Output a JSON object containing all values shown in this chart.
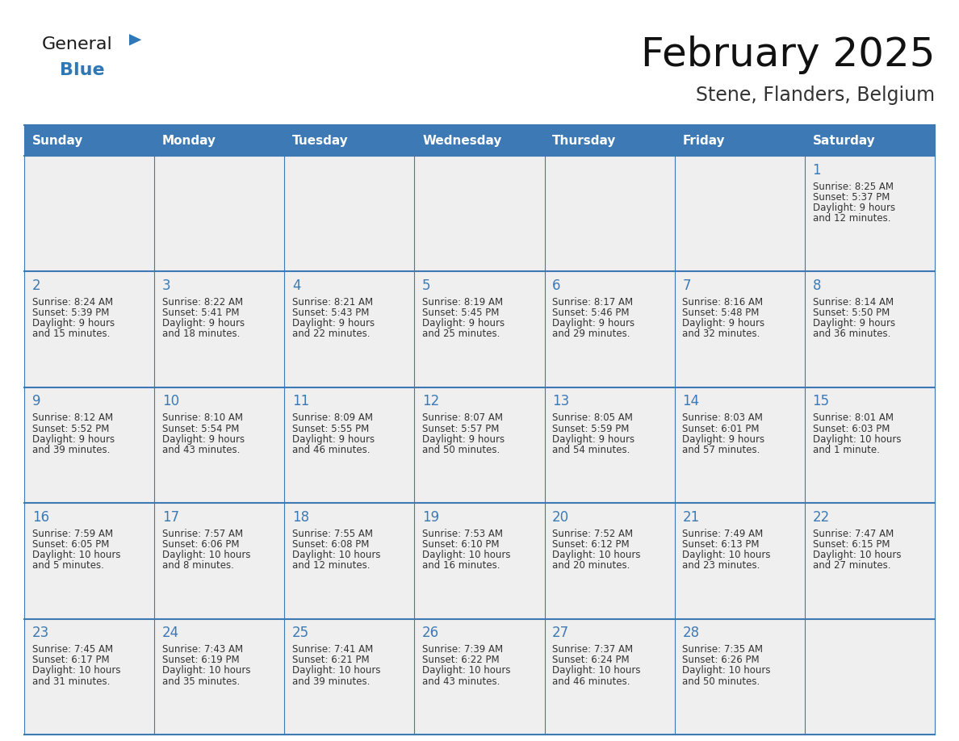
{
  "title": "February 2025",
  "subtitle": "Stene, Flanders, Belgium",
  "days_of_week": [
    "Sunday",
    "Monday",
    "Tuesday",
    "Wednesday",
    "Thursday",
    "Friday",
    "Saturday"
  ],
  "header_bg": "#3d7ab5",
  "header_text": "#ffffff",
  "cell_bg": "#efefef",
  "cell_text": "#333333",
  "border_color": "#3d7ab5",
  "day_num_color": "#3d7ab5",
  "calendar_data": [
    [
      null,
      null,
      null,
      null,
      null,
      null,
      {
        "day": 1,
        "sunrise": "8:25 AM",
        "sunset": "5:37 PM",
        "daylight": "9 hours",
        "daylight2": "and 12 minutes."
      }
    ],
    [
      {
        "day": 2,
        "sunrise": "8:24 AM",
        "sunset": "5:39 PM",
        "daylight": "9 hours",
        "daylight2": "and 15 minutes."
      },
      {
        "day": 3,
        "sunrise": "8:22 AM",
        "sunset": "5:41 PM",
        "daylight": "9 hours",
        "daylight2": "and 18 minutes."
      },
      {
        "day": 4,
        "sunrise": "8:21 AM",
        "sunset": "5:43 PM",
        "daylight": "9 hours",
        "daylight2": "and 22 minutes."
      },
      {
        "day": 5,
        "sunrise": "8:19 AM",
        "sunset": "5:45 PM",
        "daylight": "9 hours",
        "daylight2": "and 25 minutes."
      },
      {
        "day": 6,
        "sunrise": "8:17 AM",
        "sunset": "5:46 PM",
        "daylight": "9 hours",
        "daylight2": "and 29 minutes."
      },
      {
        "day": 7,
        "sunrise": "8:16 AM",
        "sunset": "5:48 PM",
        "daylight": "9 hours",
        "daylight2": "and 32 minutes."
      },
      {
        "day": 8,
        "sunrise": "8:14 AM",
        "sunset": "5:50 PM",
        "daylight": "9 hours",
        "daylight2": "and 36 minutes."
      }
    ],
    [
      {
        "day": 9,
        "sunrise": "8:12 AM",
        "sunset": "5:52 PM",
        "daylight": "9 hours",
        "daylight2": "and 39 minutes."
      },
      {
        "day": 10,
        "sunrise": "8:10 AM",
        "sunset": "5:54 PM",
        "daylight": "9 hours",
        "daylight2": "and 43 minutes."
      },
      {
        "day": 11,
        "sunrise": "8:09 AM",
        "sunset": "5:55 PM",
        "daylight": "9 hours",
        "daylight2": "and 46 minutes."
      },
      {
        "day": 12,
        "sunrise": "8:07 AM",
        "sunset": "5:57 PM",
        "daylight": "9 hours",
        "daylight2": "and 50 minutes."
      },
      {
        "day": 13,
        "sunrise": "8:05 AM",
        "sunset": "5:59 PM",
        "daylight": "9 hours",
        "daylight2": "and 54 minutes."
      },
      {
        "day": 14,
        "sunrise": "8:03 AM",
        "sunset": "6:01 PM",
        "daylight": "9 hours",
        "daylight2": "and 57 minutes."
      },
      {
        "day": 15,
        "sunrise": "8:01 AM",
        "sunset": "6:03 PM",
        "daylight": "10 hours",
        "daylight2": "and 1 minute."
      }
    ],
    [
      {
        "day": 16,
        "sunrise": "7:59 AM",
        "sunset": "6:05 PM",
        "daylight": "10 hours",
        "daylight2": "and 5 minutes."
      },
      {
        "day": 17,
        "sunrise": "7:57 AM",
        "sunset": "6:06 PM",
        "daylight": "10 hours",
        "daylight2": "and 8 minutes."
      },
      {
        "day": 18,
        "sunrise": "7:55 AM",
        "sunset": "6:08 PM",
        "daylight": "10 hours",
        "daylight2": "and 12 minutes."
      },
      {
        "day": 19,
        "sunrise": "7:53 AM",
        "sunset": "6:10 PM",
        "daylight": "10 hours",
        "daylight2": "and 16 minutes."
      },
      {
        "day": 20,
        "sunrise": "7:52 AM",
        "sunset": "6:12 PM",
        "daylight": "10 hours",
        "daylight2": "and 20 minutes."
      },
      {
        "day": 21,
        "sunrise": "7:49 AM",
        "sunset": "6:13 PM",
        "daylight": "10 hours",
        "daylight2": "and 23 minutes."
      },
      {
        "day": 22,
        "sunrise": "7:47 AM",
        "sunset": "6:15 PM",
        "daylight": "10 hours",
        "daylight2": "and 27 minutes."
      }
    ],
    [
      {
        "day": 23,
        "sunrise": "7:45 AM",
        "sunset": "6:17 PM",
        "daylight": "10 hours",
        "daylight2": "and 31 minutes."
      },
      {
        "day": 24,
        "sunrise": "7:43 AM",
        "sunset": "6:19 PM",
        "daylight": "10 hours",
        "daylight2": "and 35 minutes."
      },
      {
        "day": 25,
        "sunrise": "7:41 AM",
        "sunset": "6:21 PM",
        "daylight": "10 hours",
        "daylight2": "and 39 minutes."
      },
      {
        "day": 26,
        "sunrise": "7:39 AM",
        "sunset": "6:22 PM",
        "daylight": "10 hours",
        "daylight2": "and 43 minutes."
      },
      {
        "day": 27,
        "sunrise": "7:37 AM",
        "sunset": "6:24 PM",
        "daylight": "10 hours",
        "daylight2": "and 46 minutes."
      },
      {
        "day": 28,
        "sunrise": "7:35 AM",
        "sunset": "6:26 PM",
        "daylight": "10 hours",
        "daylight2": "and 50 minutes."
      },
      null
    ]
  ],
  "logo_text_general": "General",
  "logo_text_blue": "Blue",
  "logo_color_general": "#1a1a1a",
  "logo_color_blue": "#2e78b7",
  "logo_triangle_color": "#2e78b7",
  "title_fontsize": 36,
  "subtitle_fontsize": 17,
  "header_fontsize": 11,
  "day_num_fontsize": 12,
  "cell_fontsize": 8.5
}
